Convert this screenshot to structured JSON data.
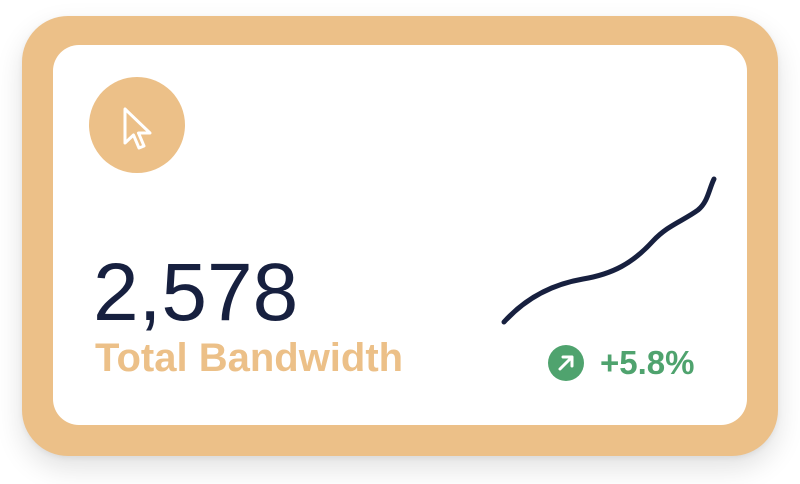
{
  "widget": {
    "value": "2,578",
    "label": "Total Bandwidth",
    "change": "+5.8%",
    "icon": "cursor-icon",
    "change_icon": "arrow-up-right-icon"
  },
  "colors": {
    "accent": "#ECC088",
    "value_text": "#17203F",
    "positive": "#4FA36E"
  }
}
